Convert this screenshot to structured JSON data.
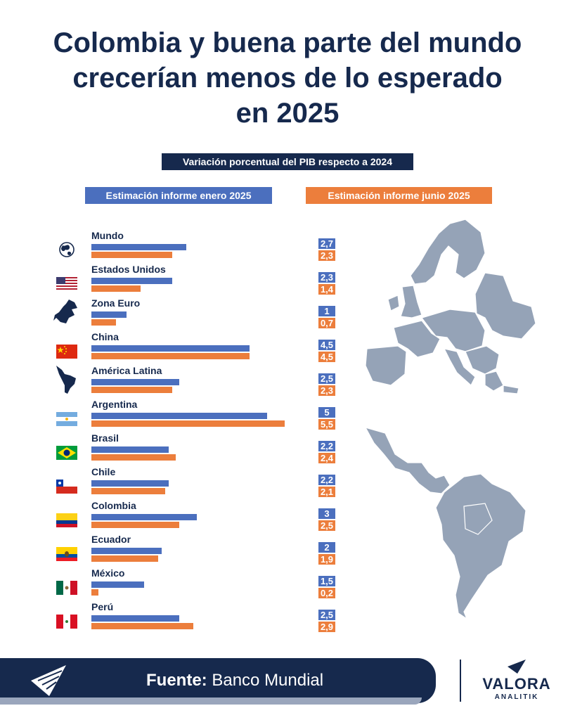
{
  "title": [
    "Colombia y buena parte del mundo",
    "crecerían menos de lo esperado",
    "en 2025"
  ],
  "subtitle": "Variación porcentual del PIB respecto a 2024",
  "legend": {
    "enero": "Estimación informe enero 2025",
    "junio": "Estimación informe junio 2025"
  },
  "colors": {
    "navy": "#16294d",
    "blue": "#4b6fbe",
    "orange": "#ec7e3c",
    "map": "#95a3b7"
  },
  "chart_data": {
    "type": "bar",
    "title": "Variación porcentual del PIB respecto a 2024",
    "categories": [
      "Mundo",
      "Estados Unidos",
      "Zona Euro",
      "China",
      "América Latina",
      "Argentina",
      "Brasil",
      "Chile",
      "Colombia",
      "Ecuador",
      "México",
      "Perú"
    ],
    "series": [
      {
        "name": "Estimación informe enero 2025",
        "values": [
          2.7,
          2.3,
          1,
          4.5,
          2.5,
          5,
          2.2,
          2.2,
          3,
          2,
          1.5,
          2.5
        ],
        "labels": [
          "2,7",
          "2,3",
          "1",
          "4,5",
          "2,5",
          "5",
          "2,2",
          "2,2",
          "3",
          "2",
          "1,5",
          "2,5"
        ]
      },
      {
        "name": "Estimación informe junio 2025",
        "values": [
          2.3,
          1.4,
          0.7,
          4.5,
          2.3,
          5.5,
          2.4,
          2.1,
          2.5,
          1.9,
          0.2,
          2.9
        ],
        "labels": [
          "2,3",
          "1,4",
          "0,7",
          "4,5",
          "2,3",
          "5,5",
          "2,4",
          "2,1",
          "2,5",
          "1,9",
          "0,2",
          "2,9"
        ]
      }
    ],
    "xlim": [
      0,
      5.5
    ]
  },
  "footer": {
    "source_label": "Fuente:",
    "source_value": "Banco Mundial"
  },
  "brand": {
    "name": "VALORA",
    "sub": "ANALITIK"
  }
}
